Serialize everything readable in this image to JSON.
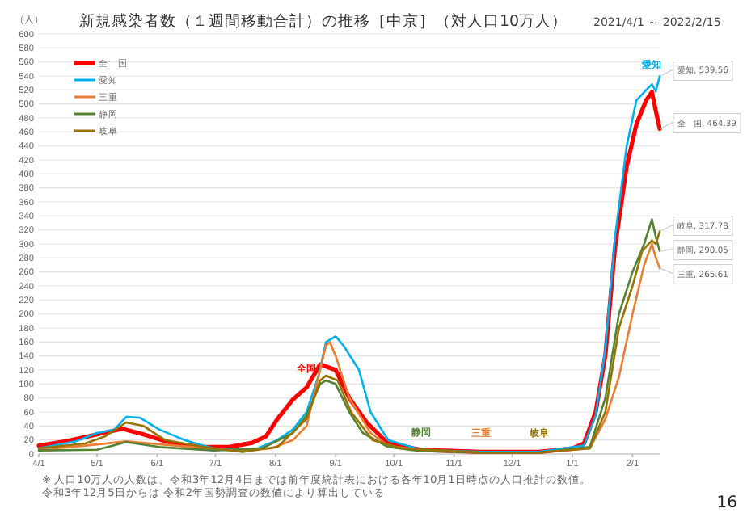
{
  "chart_data": {
    "type": "line",
    "title": "新規感染者数（１週間移動合計）の推移［中京］（対人口10万人）",
    "subtitle": "2021/4/1 ～ 2022/2/15",
    "ylabel": "（人）",
    "xlim": [
      "2021-04-01",
      "2022-02-15"
    ],
    "ylim": [
      0,
      600
    ],
    "yticks": [
      0,
      20,
      40,
      60,
      80,
      100,
      120,
      140,
      160,
      180,
      200,
      220,
      240,
      260,
      280,
      300,
      320,
      340,
      360,
      380,
      400,
      420,
      440,
      460,
      480,
      500,
      520,
      540,
      560,
      580,
      600
    ],
    "xticks": [
      {
        "value": "2021-04-01",
        "label": "4/1"
      },
      {
        "value": "2021-05-01",
        "label": "5/1"
      },
      {
        "value": "2021-06-01",
        "label": "6/1"
      },
      {
        "value": "2021-07-01",
        "label": "7/1"
      },
      {
        "value": "2021-08-01",
        "label": "8/1"
      },
      {
        "value": "2021-09-01",
        "label": "9/1"
      },
      {
        "value": "2021-10-01",
        "label": "10/1"
      },
      {
        "value": "2021-11-01",
        "label": "11/1"
      },
      {
        "value": "2021-12-01",
        "label": "12/1"
      },
      {
        "value": "2022-01-01",
        "label": "1/1"
      },
      {
        "value": "2022-02-01",
        "label": "2/1"
      }
    ],
    "grid": "y",
    "legend": "top left",
    "series": [
      {
        "name": "全　国",
        "color": "#ff0000",
        "x": [
          "2021-04-01",
          "2021-04-15",
          "2021-05-01",
          "2021-05-14",
          "2021-05-25",
          "2021-06-10",
          "2021-06-25",
          "2021-07-08",
          "2021-07-20",
          "2021-07-27",
          "2021-08-02",
          "2021-08-10",
          "2021-08-17",
          "2021-08-24",
          "2021-09-01",
          "2021-09-08",
          "2021-09-17",
          "2021-09-28",
          "2021-10-15",
          "2021-11-15",
          "2021-12-15",
          "2022-01-01",
          "2022-01-07",
          "2022-01-13",
          "2022-01-18",
          "2022-01-23",
          "2022-01-29",
          "2022-02-03",
          "2022-02-08",
          "2022-02-11",
          "2022-02-13",
          "2022-02-15"
        ],
        "values": [
          12,
          18,
          28,
          36,
          28,
          14,
          10,
          10,
          16,
          25,
          50,
          78,
          95,
          128,
          120,
          80,
          45,
          15,
          6,
          3,
          3,
          8,
          15,
          60,
          141,
          296,
          411,
          471,
          505,
          517,
          490,
          464.39
        ]
      },
      {
        "name": "愛知",
        "color": "#00b0f0",
        "x": [
          "2021-04-01",
          "2021-04-20",
          "2021-05-01",
          "2021-05-10",
          "2021-05-16",
          "2021-05-23",
          "2021-06-02",
          "2021-06-15",
          "2021-06-30",
          "2021-07-20",
          "2021-08-02",
          "2021-08-10",
          "2021-08-17",
          "2021-08-23",
          "2021-08-27",
          "2021-09-01",
          "2021-09-05",
          "2021-09-13",
          "2021-09-19",
          "2021-09-28",
          "2021-10-15",
          "2021-11-15",
          "2021-12-15",
          "2022-01-07",
          "2022-01-13",
          "2022-01-18",
          "2022-01-23",
          "2022-01-29",
          "2022-02-03",
          "2022-02-08",
          "2022-02-11",
          "2022-02-13",
          "2022-02-15"
        ],
        "values": [
          8,
          18,
          30,
          35,
          53,
          52,
          35,
          20,
          8,
          5,
          20,
          35,
          60,
          110,
          160,
          168,
          155,
          120,
          60,
          20,
          6,
          3,
          3,
          12,
          55,
          150,
          310,
          440,
          505,
          520,
          528,
          518,
          539.56
        ]
      },
      {
        "name": "三重",
        "color": "#ed7d31",
        "x": [
          "2021-04-01",
          "2021-04-25",
          "2021-05-16",
          "2021-06-02",
          "2021-06-20",
          "2021-07-10",
          "2021-07-30",
          "2021-08-10",
          "2021-08-17",
          "2021-08-24",
          "2021-08-27",
          "2021-08-29",
          "2021-09-01",
          "2021-09-08",
          "2021-09-19",
          "2021-09-28",
          "2021-10-15",
          "2021-11-15",
          "2021-12-15",
          "2022-01-10",
          "2022-01-18",
          "2022-01-25",
          "2022-02-01",
          "2022-02-07",
          "2022-02-11",
          "2022-02-13",
          "2022-02-15"
        ],
        "values": [
          6,
          12,
          18,
          14,
          10,
          5,
          8,
          20,
          40,
          120,
          155,
          160,
          140,
          80,
          30,
          12,
          5,
          2,
          2,
          8,
          50,
          110,
          200,
          270,
          300,
          280,
          265.61
        ]
      },
      {
        "name": "静岡",
        "color": "#548235",
        "x": [
          "2021-04-01",
          "2021-05-01",
          "2021-05-16",
          "2021-06-02",
          "2021-06-30",
          "2021-07-25",
          "2021-08-10",
          "2021-08-17",
          "2021-08-24",
          "2021-08-27",
          "2021-09-01",
          "2021-09-08",
          "2021-09-15",
          "2021-09-28",
          "2021-10-15",
          "2021-11-15",
          "2021-12-15",
          "2022-01-10",
          "2022-01-18",
          "2022-01-25",
          "2022-02-01",
          "2022-02-07",
          "2022-02-11",
          "2022-02-13",
          "2022-02-15"
        ],
        "values": [
          5,
          6,
          17,
          10,
          5,
          8,
          30,
          55,
          100,
          105,
          100,
          60,
          30,
          10,
          4,
          2,
          2,
          10,
          80,
          200,
          260,
          300,
          335,
          310,
          290.05
        ]
      },
      {
        "name": "岐阜",
        "color": "#997300",
        "x": [
          "2021-04-01",
          "2021-04-25",
          "2021-05-05",
          "2021-05-16",
          "2021-05-25",
          "2021-06-05",
          "2021-06-25",
          "2021-07-15",
          "2021-08-02",
          "2021-08-17",
          "2021-08-24",
          "2021-08-27",
          "2021-09-02",
          "2021-09-09",
          "2021-09-20",
          "2021-10-05",
          "2021-11-15",
          "2021-12-15",
          "2022-01-10",
          "2022-01-18",
          "2022-01-25",
          "2022-02-01",
          "2022-02-06",
          "2022-02-11",
          "2022-02-13",
          "2022-02-15"
        ],
        "values": [
          8,
          15,
          25,
          45,
          40,
          20,
          10,
          3,
          10,
          50,
          105,
          112,
          105,
          60,
          20,
          8,
          2,
          2,
          8,
          60,
          180,
          240,
          290,
          305,
          300,
          317.78
        ]
      }
    ],
    "annotations": [
      {
        "text": "愛知",
        "x": "2022-02-11",
        "y": 528
      },
      {
        "text": "全国",
        "x": "2021-08-17",
        "y": 95
      },
      {
        "text": "静岡",
        "x": "2021-10-15",
        "y": 4
      },
      {
        "text": "三重",
        "x": "2021-11-15",
        "y": 2
      },
      {
        "text": "岐阜",
        "x": "2021-12-15",
        "y": 2
      },
      {
        "text": "愛知, 539.56",
        "x": "2022-02-15",
        "y": 539.56
      },
      {
        "text": "全　国, 464.39",
        "x": "2022-02-15",
        "y": 464.39
      },
      {
        "text": "岐阜, 317.78",
        "x": "2022-02-15",
        "y": 317.78
      },
      {
        "text": "静岡, 290.05",
        "x": "2022-02-15",
        "y": 290.05
      },
      {
        "text": "三重, 265.61",
        "x": "2022-02-15",
        "y": 265.61
      },
      "※ 人口10万人の人数は、令和3年12月4日までは前年度統計表における各年10月1日時点の人口推計の数値。",
      "令和3年12月5日からは 令和2年国勢調査の数値により算出している",
      "16"
    ]
  }
}
